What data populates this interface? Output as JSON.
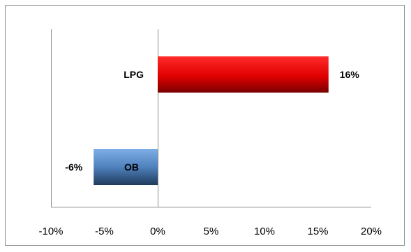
{
  "chart_data": {
    "type": "bar",
    "orientation": "horizontal",
    "categories": [
      "LPG",
      "OB"
    ],
    "values": [
      16,
      -6
    ],
    "value_labels": [
      "16%",
      "-6%"
    ],
    "bar_colors": [
      "#e00000",
      "#4f81bd"
    ],
    "xlim": [
      -10,
      20
    ],
    "x_ticks": [
      -10,
      -5,
      0,
      5,
      10,
      15,
      20
    ],
    "x_tick_labels": [
      "-10%",
      "-5%",
      "0%",
      "5%",
      "10%",
      "15%",
      "20%"
    ],
    "grid": "vertical",
    "legend": "none"
  }
}
